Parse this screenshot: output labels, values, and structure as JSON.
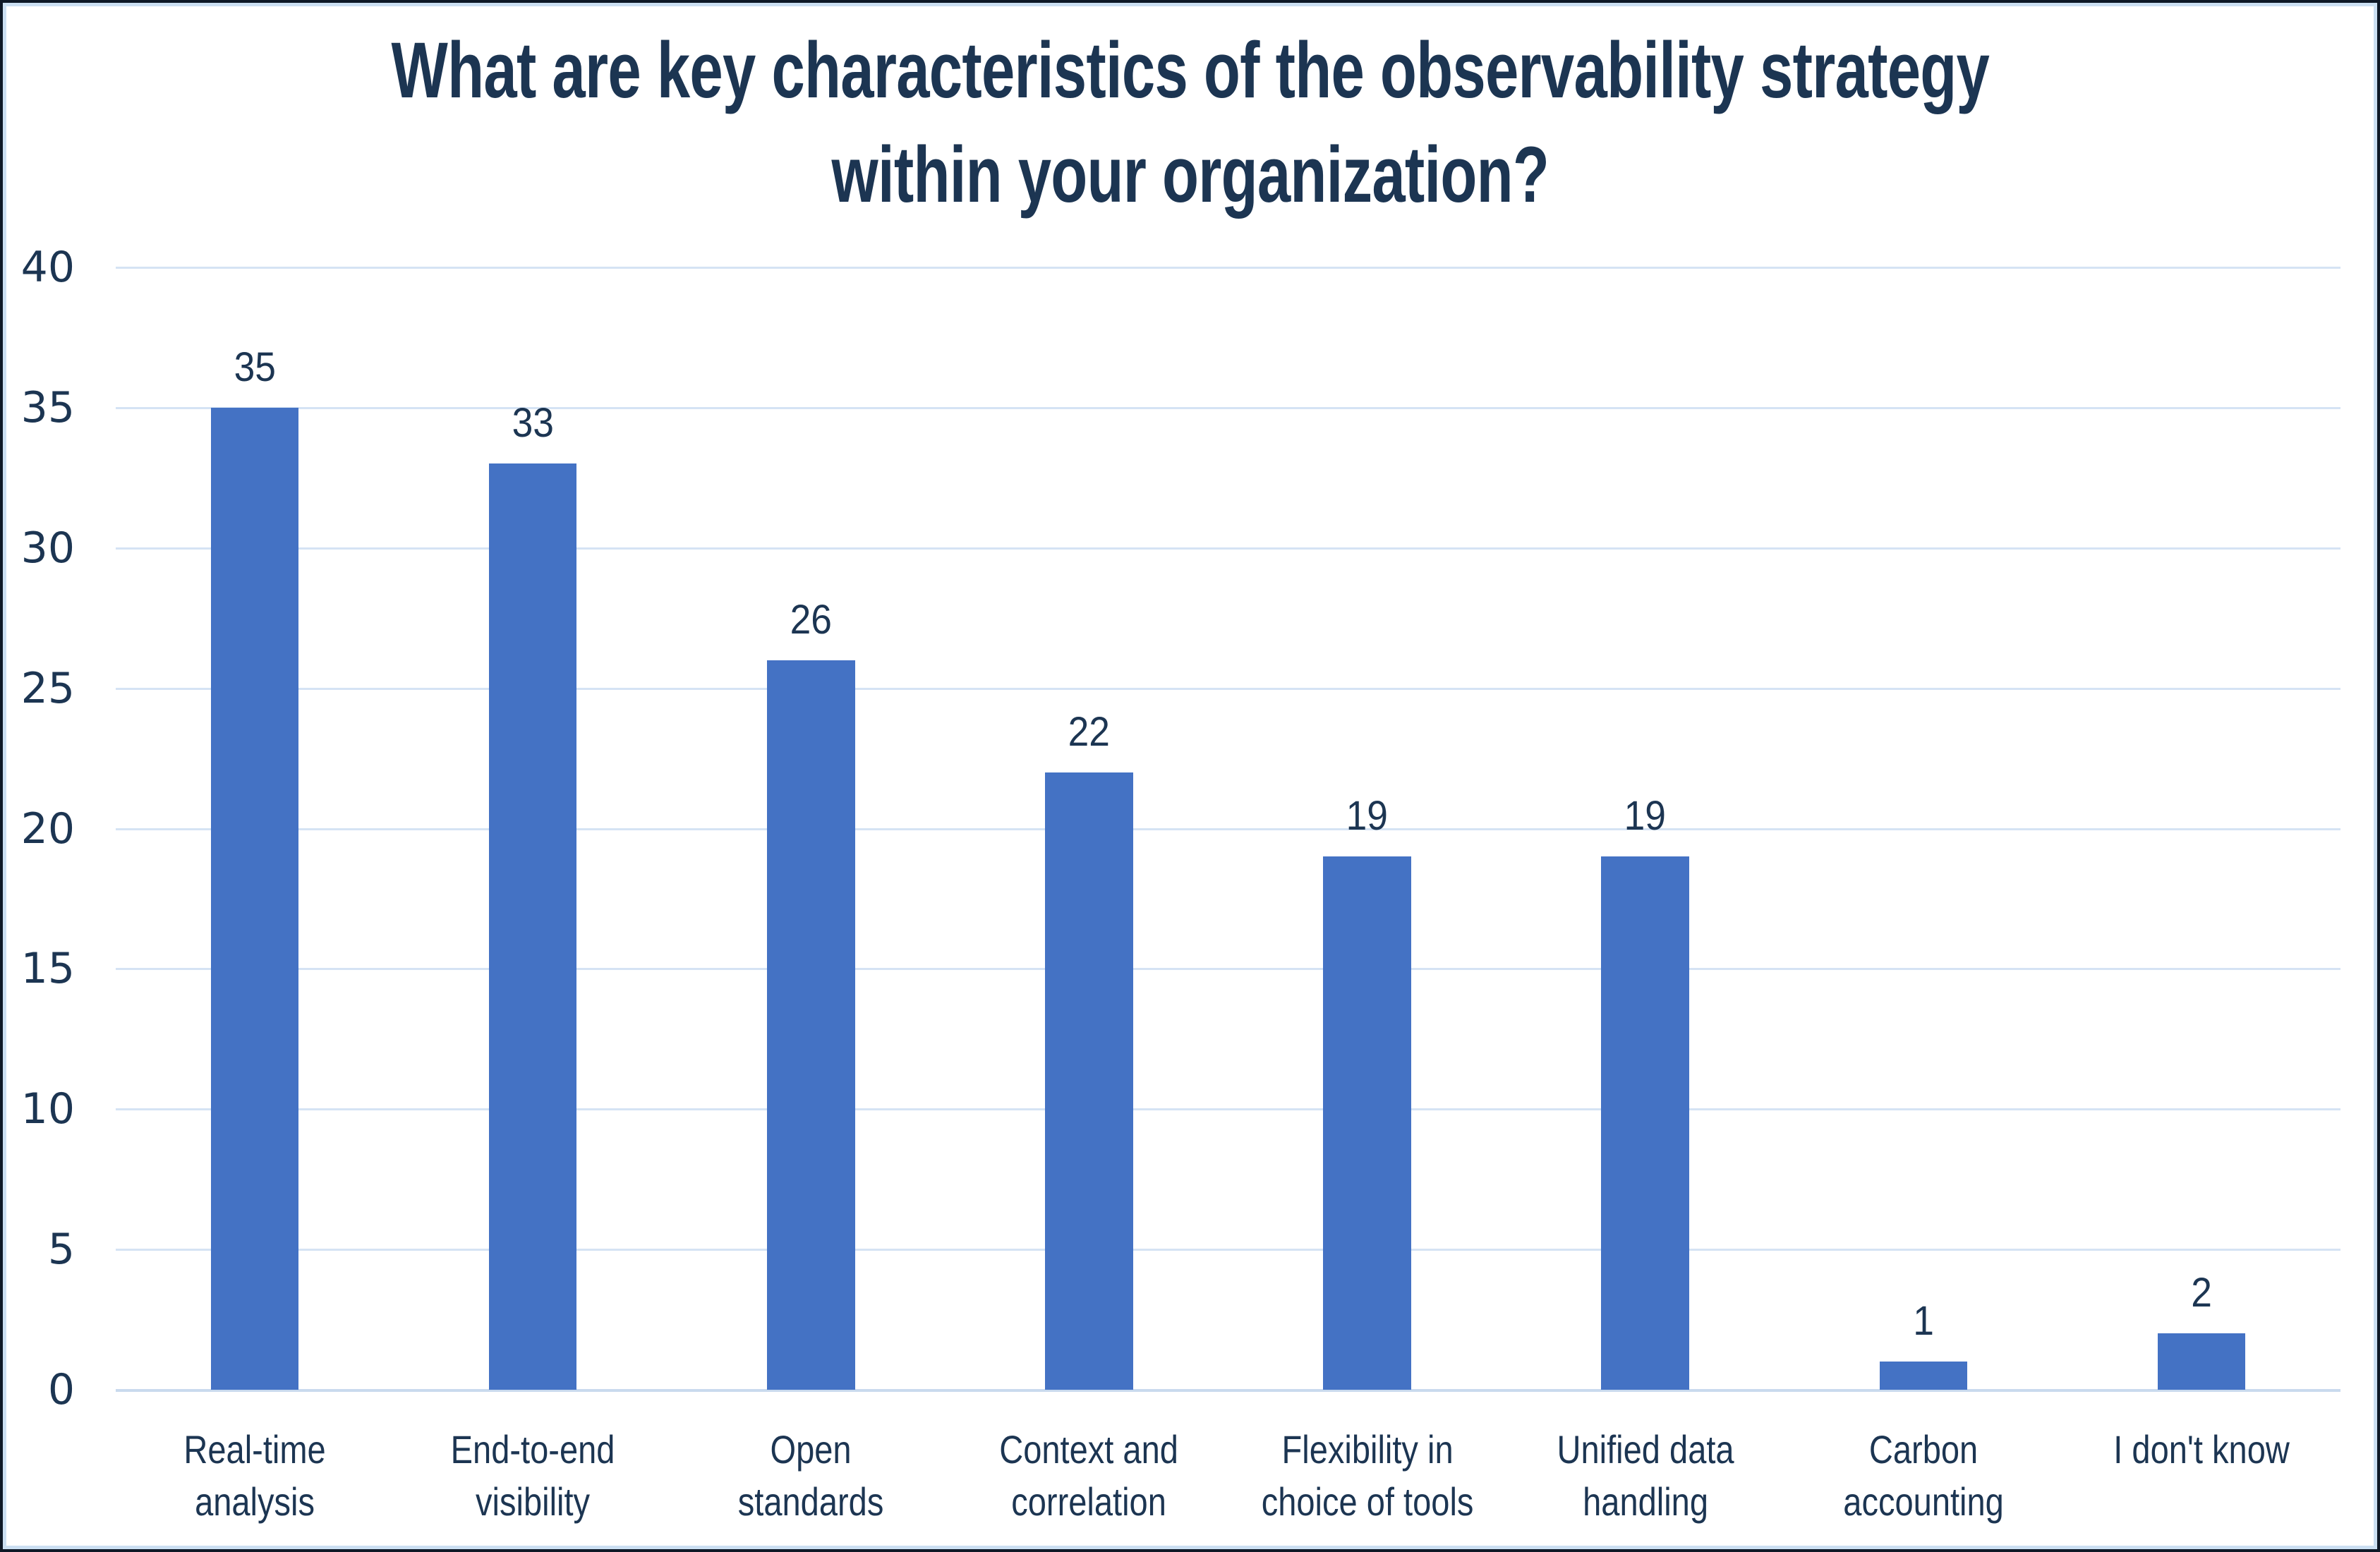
{
  "chart_data": {
    "type": "bar",
    "title": "What are key characteristics of the observability strategy\nwithin your organization?",
    "categories": [
      "Real-time\nanalysis",
      "End-to-end\nvisibility",
      "Open\nstandards",
      "Context and\ncorrelation",
      "Flexibility in\nchoice of tools",
      "Unified data\nhandling",
      "Carbon\naccounting",
      "I don't know"
    ],
    "values": [
      35,
      33,
      26,
      22,
      19,
      19,
      1,
      2
    ],
    "xlabel": "",
    "ylabel": "",
    "ylim": [
      0,
      40
    ],
    "yticks": [
      0,
      5,
      10,
      15,
      20,
      25,
      30,
      35,
      40
    ],
    "grid": true,
    "legend_position": "none",
    "data_labels_shown": true
  },
  "colors": {
    "bar_fill": "#4472c4",
    "text_navy": "#1c3552",
    "gridline": "#d5e3f4",
    "axis_baseline": "#c9daee",
    "inner_frame_border": "#cbdff2",
    "outer_frame_border": "#0e1826",
    "background": "#ffffff"
  }
}
